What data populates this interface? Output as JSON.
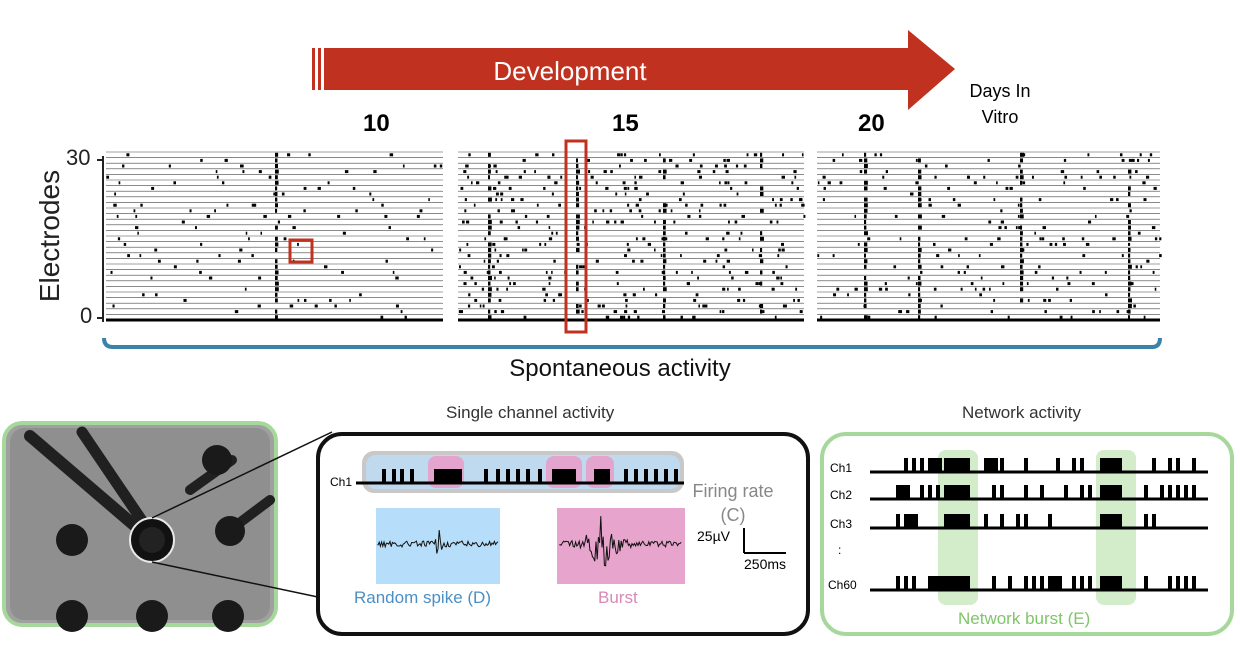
{
  "header": {
    "arrow_label": "Development",
    "days": [
      "10",
      "15",
      "20"
    ],
    "days_unit_line1": "Days In",
    "days_unit_line2": "Vitro"
  },
  "raster": {
    "y_label": "Electrodes",
    "y_max": "30",
    "y_min": "0",
    "caption": "Spontaneous activity"
  },
  "single_channel": {
    "title": "Single channel activity",
    "channel": "Ch1",
    "firing_rate_line1": "Firing rate",
    "firing_rate_line2": "(C)",
    "random_spike": "Random spike (D)",
    "burst": "Burst",
    "scale_voltage": "25µV",
    "scale_time": "250ms"
  },
  "network": {
    "title": "Network activity",
    "channels": [
      "Ch1",
      "Ch2",
      "Ch3",
      ":",
      "Ch60"
    ],
    "network_burst": "Network burst (E)"
  },
  "colors": {
    "arrow": "#c0311f",
    "bracket": "#3b82a8",
    "highlight_box": "#c0311f",
    "panel_green": "#a7d89b",
    "spike_blue": "#b6defa",
    "burst_pink": "#e7a4cc",
    "random_text": "#4a8fc6",
    "burst_text": "#d68ab8",
    "network_text": "#7fc56a"
  }
}
